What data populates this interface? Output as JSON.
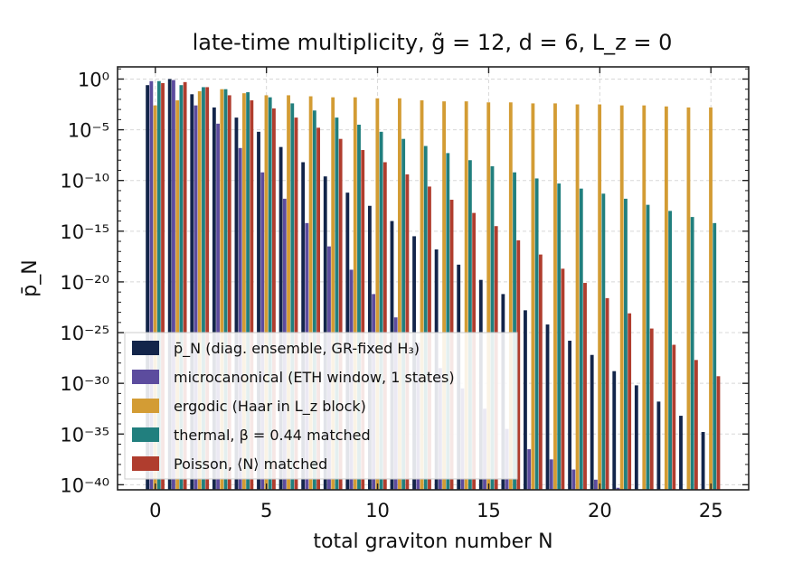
{
  "chart_data": {
    "type": "bar",
    "title": "late-time multiplicity, g̃ = 12, d = 6, L_z = 0",
    "xlabel": "total graviton number N",
    "ylabel": "p̄_N",
    "yscale": "log",
    "xlim": [
      -1.7,
      26.7
    ],
    "ylim_exponent": [
      -40.5,
      1.2
    ],
    "xticks": [
      0,
      5,
      10,
      15,
      20,
      25
    ],
    "yticks": [
      {
        "exp": 0,
        "label": "10⁰"
      },
      {
        "exp": -5,
        "label": "10⁻⁵"
      },
      {
        "exp": -10,
        "label": "10⁻¹⁰"
      },
      {
        "exp": -15,
        "label": "10⁻¹⁵"
      },
      {
        "exp": -20,
        "label": "10⁻²⁰"
      },
      {
        "exp": -25,
        "label": "10⁻²⁵"
      },
      {
        "exp": -30,
        "label": "10⁻³⁰"
      },
      {
        "exp": -35,
        "label": "10⁻³⁵"
      },
      {
        "exp": -40,
        "label": "10⁻⁴⁰"
      }
    ],
    "grid": true,
    "legend_position": "bottom-left",
    "x": [
      0,
      1,
      2,
      3,
      4,
      5,
      6,
      7,
      8,
      9,
      10,
      11,
      12,
      13,
      14,
      15,
      16,
      17,
      18,
      19,
      20,
      21,
      22,
      23,
      24,
      25
    ],
    "series": [
      {
        "name": "p̄_N (diag. ensemble, GR-fixed H₃)",
        "color": "#13254a",
        "log10_values": [
          -0.6,
          0,
          -1.5,
          -2.8,
          -3.8,
          -5.2,
          -6.7,
          -8.2,
          -9.6,
          -11.2,
          -12.5,
          -14,
          -15.5,
          -16.8,
          -18.3,
          -19.8,
          -21.2,
          -22.8,
          -24.2,
          -25.8,
          -27.2,
          -28.8,
          -30.2,
          -31.8,
          -33.2,
          -34.8
        ]
      },
      {
        "name": "microcanonical (ETH window, 1 states)",
        "color": "#5c4c9e",
        "log10_values": [
          -0.2,
          -0.1,
          -2.6,
          -4.4,
          -6.8,
          -9.2,
          -11.8,
          -14.2,
          -16.5,
          -18.8,
          -21.2,
          -23.5,
          -26,
          -28.5,
          -30.5,
          -32.5,
          -34.5,
          -36.5,
          -37.5,
          -38.5,
          -39.5,
          -40.3,
          -40.5,
          -40.5,
          -40.5,
          -40.5
        ]
      },
      {
        "name": "ergodic (Haar in L_z block)",
        "color": "#d39c34",
        "log10_values": [
          -2.6,
          -2.1,
          -1.2,
          -1,
          -1.4,
          -1.6,
          -1.6,
          -1.7,
          -1.8,
          -1.8,
          -1.9,
          -1.9,
          -2.1,
          -2.2,
          -2.2,
          -2.3,
          -2.3,
          -2.4,
          -2.4,
          -2.5,
          -2.5,
          -2.6,
          -2.6,
          -2.7,
          -2.8,
          -2.8
        ]
      },
      {
        "name": "thermal, β = 0.44 matched",
        "color": "#217f7e",
        "log10_values": [
          -0.2,
          -0.6,
          -0.8,
          -1,
          -1.3,
          -1.8,
          -2.4,
          -3.1,
          -3.8,
          -4.5,
          -5.2,
          -5.9,
          -6.6,
          -7.3,
          -8.0,
          -8.6,
          -9.2,
          -9.8,
          -10.3,
          -10.8,
          -11.3,
          -11.8,
          -12.4,
          -13.0,
          -13.6,
          -14.2
        ]
      },
      {
        "name": "Poisson, ⟨N⟩ matched",
        "color": "#b03d2e",
        "log10_values": [
          -0.4,
          -0.3,
          -0.8,
          -1.6,
          -2.1,
          -2.9,
          -3.8,
          -4.8,
          -5.9,
          -7.0,
          -8.2,
          -9.4,
          -10.6,
          -11.9,
          -13.2,
          -14.5,
          -15.9,
          -17.3,
          -18.7,
          -20.1,
          -21.6,
          -23.1,
          -24.6,
          -26.2,
          -27.7,
          -29.3
        ]
      }
    ]
  }
}
